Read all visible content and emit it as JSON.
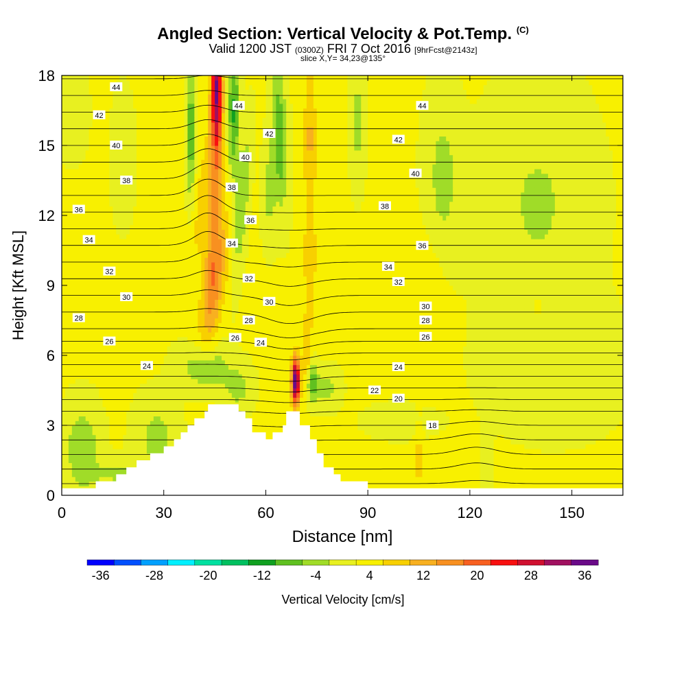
{
  "title": {
    "main": "Angled Section: Vertical Velocity & Pot.Temp.",
    "main_suffix": "(C)",
    "valid_prefix": "Valid 1200 JST",
    "valid_utc": "(0300Z)",
    "valid_date": "FRI 7 Oct 2016",
    "forecast_tag": "[9hrFcst@2143z]",
    "slice": "slice X,Y= 34,23@135°"
  },
  "colors": {
    "terrain": "#ffffff",
    "contour": "#000000",
    "palette": [
      "#0000ff",
      "#0050ff",
      "#00a0ff",
      "#00f0ff",
      "#00e0a0",
      "#00c060",
      "#10a020",
      "#60c020",
      "#a0dc28",
      "#e8f020",
      "#f8f000",
      "#f8d000",
      "#f8b020",
      "#f89020",
      "#f86020",
      "#f81010",
      "#d01030",
      "#a01060",
      "#6a0a88"
    ]
  },
  "chart_data": {
    "type": "heatmap",
    "xlabel": "Distance [nm]",
    "ylabel": "Height [Kft MSL]",
    "xlim": [
      0,
      165
    ],
    "ylim": [
      0,
      18
    ],
    "xticks": [
      0,
      30,
      60,
      90,
      120,
      150
    ],
    "yticks": [
      0,
      3,
      6,
      9,
      12,
      15,
      18
    ],
    "grid": false,
    "colorbar": {
      "label": "Vertical Velocity [cm/s]",
      "ticks": [
        -36,
        -28,
        -20,
        -12,
        -4,
        4,
        12,
        20,
        28,
        36
      ],
      "min": -38,
      "max": 38,
      "step": 4
    },
    "terrain_profile": [
      [
        0,
        0.3
      ],
      [
        10,
        0.3
      ],
      [
        10,
        0.6
      ],
      [
        16,
        0.6
      ],
      [
        16,
        0.9
      ],
      [
        19,
        0.9
      ],
      [
        19,
        1.2
      ],
      [
        22,
        1.2
      ],
      [
        22,
        1.5
      ],
      [
        26,
        1.5
      ],
      [
        26,
        1.8
      ],
      [
        30,
        1.8
      ],
      [
        30,
        2.1
      ],
      [
        33,
        2.1
      ],
      [
        33,
        2.4
      ],
      [
        35,
        2.4
      ],
      [
        35,
        2.7
      ],
      [
        37,
        2.7
      ],
      [
        37,
        3.0
      ],
      [
        39,
        3.0
      ],
      [
        39,
        3.3
      ],
      [
        42,
        3.3
      ],
      [
        42,
        3.6
      ],
      [
        43,
        3.6
      ],
      [
        43,
        3.9
      ],
      [
        52,
        3.9
      ],
      [
        52,
        3.6
      ],
      [
        54,
        3.6
      ],
      [
        54,
        3.3
      ],
      [
        56,
        3.3
      ],
      [
        56,
        2.7
      ],
      [
        60,
        2.7
      ],
      [
        60,
        2.4
      ],
      [
        62,
        2.4
      ],
      [
        62,
        2.7
      ],
      [
        65,
        2.7
      ],
      [
        65,
        3.0
      ],
      [
        66,
        3.0
      ],
      [
        66,
        3.6
      ],
      [
        70,
        3.6
      ],
      [
        70,
        3.0
      ],
      [
        73,
        3.0
      ],
      [
        73,
        2.4
      ],
      [
        75,
        2.4
      ],
      [
        75,
        1.8
      ],
      [
        77,
        1.8
      ],
      [
        77,
        1.2
      ],
      [
        80,
        1.2
      ],
      [
        80,
        0.9
      ],
      [
        82,
        0.9
      ],
      [
        82,
        0.6
      ],
      [
        90,
        0.6
      ],
      [
        90,
        0.3
      ],
      [
        165,
        0.3
      ]
    ],
    "velocity_features": [
      {
        "x": 45.5,
        "y": 17.5,
        "sx": 1.6,
        "sy": 2.6,
        "tilt": 0.03,
        "amp": 30
      },
      {
        "x": 45,
        "y": 12.0,
        "sx": 2.4,
        "sy": 4.5,
        "tilt": 0.25,
        "amp": 12
      },
      {
        "x": 45,
        "y": 9.0,
        "sx": 3.5,
        "sy": 3.0,
        "tilt": 1.3,
        "amp": 8
      },
      {
        "x": 50.5,
        "y": 16.5,
        "sx": 1.8,
        "sy": 3.0,
        "tilt": 0.0,
        "amp": -13
      },
      {
        "x": 53,
        "y": 12.5,
        "sx": 1.8,
        "sy": 3.0,
        "tilt": 0.55,
        "amp": -9
      },
      {
        "x": 38,
        "y": 15.5,
        "sx": 1.3,
        "sy": 2.8,
        "tilt": 0.0,
        "amp": -12
      },
      {
        "x": 41,
        "y": 12.5,
        "sx": 2.5,
        "sy": 3.0,
        "tilt": 0.6,
        "amp": 5
      },
      {
        "x": 64,
        "y": 15.5,
        "sx": 2.2,
        "sy": 3.0,
        "tilt": -0.25,
        "amp": -12
      },
      {
        "x": 61,
        "y": 13.0,
        "sx": 2.0,
        "sy": 2.0,
        "tilt": 0.0,
        "amp": -6
      },
      {
        "x": 73,
        "y": 15.5,
        "sx": 1.8,
        "sy": 3.0,
        "tilt": 0.0,
        "amp": 8
      },
      {
        "x": 73,
        "y": 10.0,
        "sx": 1.8,
        "sy": 3.0,
        "tilt": 0.0,
        "amp": 7
      },
      {
        "x": 68.8,
        "y": 4.9,
        "sx": 1.2,
        "sy": 1.0,
        "tilt": 0.0,
        "amp": 38
      },
      {
        "x": 72,
        "y": 6.0,
        "sx": 1.2,
        "sy": 1.5,
        "tilt": 0.0,
        "amp": 8
      },
      {
        "x": 73.5,
        "y": 4.9,
        "sx": 1.6,
        "sy": 0.9,
        "tilt": 0.0,
        "amp": -12
      },
      {
        "x": 78,
        "y": 4.6,
        "sx": 3.5,
        "sy": 0.8,
        "tilt": 0.0,
        "amp": -6
      },
      {
        "x": 42,
        "y": 5.5,
        "sx": 7.0,
        "sy": 1.0,
        "tilt": 0.0,
        "amp": -9
      },
      {
        "x": 52,
        "y": 4.6,
        "sx": 4.0,
        "sy": 0.9,
        "tilt": 0.0,
        "amp": -6
      },
      {
        "x": 28,
        "y": 2.5,
        "sx": 6.0,
        "sy": 1.6,
        "tilt": 0.0,
        "amp": -6
      },
      {
        "x": 6,
        "y": 2.0,
        "sx": 5.0,
        "sy": 1.8,
        "tilt": 0.0,
        "amp": -8
      },
      {
        "x": 17,
        "y": 0.9,
        "sx": 9.0,
        "sy": 0.6,
        "tilt": 0.0,
        "amp": -5
      },
      {
        "x": 112,
        "y": 13.5,
        "sx": 5.0,
        "sy": 3.5,
        "tilt": 0.0,
        "amp": -6
      },
      {
        "x": 140,
        "y": 12.5,
        "sx": 15.0,
        "sy": 4.5,
        "tilt": 0.0,
        "amp": -5
      },
      {
        "x": 145,
        "y": 5.5,
        "sx": 18.0,
        "sy": 2.5,
        "tilt": 0.0,
        "amp": -4
      },
      {
        "x": 108,
        "y": 8.5,
        "sx": 5.0,
        "sy": 3.0,
        "tilt": 0.0,
        "amp": 3
      },
      {
        "x": 140,
        "y": 8.0,
        "sx": 4.0,
        "sy": 1.2,
        "tilt": 0.0,
        "amp": 3
      },
      {
        "x": 87,
        "y": 16.0,
        "sx": 2.0,
        "sy": 2.5,
        "tilt": 0.0,
        "amp": -6
      },
      {
        "x": 18,
        "y": 14.5,
        "sx": 3.0,
        "sy": 2.5,
        "tilt": 0.0,
        "amp": -4
      },
      {
        "x": 3,
        "y": 16.5,
        "sx": 4.0,
        "sy": 1.8,
        "tilt": 0.0,
        "amp": -4
      },
      {
        "x": 105,
        "y": 1.5,
        "sx": 1.2,
        "sy": 1.8,
        "tilt": 0.0,
        "amp": 5
      },
      {
        "x": 125,
        "y": 1.5,
        "sx": 1.5,
        "sy": 1.8,
        "tilt": 0.0,
        "amp": -3
      },
      {
        "x": 100,
        "y": 3.2,
        "sx": 10.0,
        "sy": 0.7,
        "tilt": 0.0,
        "amp": -3
      }
    ],
    "theta_contour_levels": [
      17,
      18,
      19,
      20,
      21,
      22,
      23,
      24,
      25,
      26,
      27,
      28,
      29,
      30,
      31,
      32,
      33,
      34,
      35,
      36,
      37,
      38,
      39,
      40,
      41,
      42,
      43,
      44,
      45,
      46
    ],
    "theta_labels": [
      {
        "text": "44",
        "x": 16,
        "y": 17.5
      },
      {
        "text": "42",
        "x": 11,
        "y": 16.3
      },
      {
        "text": "40",
        "x": 16,
        "y": 15.0
      },
      {
        "text": "38",
        "x": 19,
        "y": 13.5
      },
      {
        "text": "36",
        "x": 5,
        "y": 12.25
      },
      {
        "text": "34",
        "x": 8,
        "y": 10.95
      },
      {
        "text": "32",
        "x": 14,
        "y": 9.6
      },
      {
        "text": "30",
        "x": 19,
        "y": 8.5
      },
      {
        "text": "28",
        "x": 5,
        "y": 7.6
      },
      {
        "text": "26",
        "x": 14,
        "y": 6.6
      },
      {
        "text": "24",
        "x": 25,
        "y": 5.55
      },
      {
        "text": "44",
        "x": 52,
        "y": 16.7
      },
      {
        "text": "40",
        "x": 54,
        "y": 14.5
      },
      {
        "text": "38",
        "x": 50,
        "y": 13.2
      },
      {
        "text": "36",
        "x": 55.5,
        "y": 11.8
      },
      {
        "text": "34",
        "x": 50,
        "y": 10.8
      },
      {
        "text": "32",
        "x": 55,
        "y": 9.3
      },
      {
        "text": "30",
        "x": 61,
        "y": 8.3
      },
      {
        "text": "28",
        "x": 55,
        "y": 7.5
      },
      {
        "text": "26",
        "x": 51,
        "y": 6.75
      },
      {
        "text": "24",
        "x": 58.5,
        "y": 6.55
      },
      {
        "text": "42",
        "x": 61,
        "y": 15.5
      },
      {
        "text": "44",
        "x": 106,
        "y": 16.7
      },
      {
        "text": "42",
        "x": 99,
        "y": 15.25
      },
      {
        "text": "40",
        "x": 104,
        "y": 13.8
      },
      {
        "text": "38",
        "x": 95,
        "y": 12.4
      },
      {
        "text": "36",
        "x": 106,
        "y": 10.7
      },
      {
        "text": "34",
        "x": 96,
        "y": 9.8
      },
      {
        "text": "32",
        "x": 99,
        "y": 9.15
      },
      {
        "text": "30",
        "x": 107,
        "y": 8.1
      },
      {
        "text": "28",
        "x": 107,
        "y": 7.5
      },
      {
        "text": "26",
        "x": 107,
        "y": 6.8
      },
      {
        "text": "24",
        "x": 99,
        "y": 5.5
      },
      {
        "text": "22",
        "x": 92,
        "y": 4.5
      },
      {
        "text": "20",
        "x": 99,
        "y": 4.15
      },
      {
        "text": "18",
        "x": 109,
        "y": 3.0
      }
    ]
  }
}
